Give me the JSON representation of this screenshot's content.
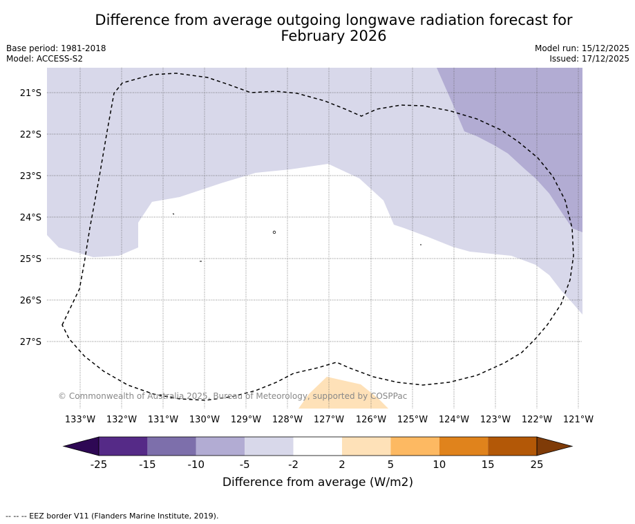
{
  "title": {
    "line1": "Difference from average outgoing longwave radiation forecast for",
    "line2": "February 2026"
  },
  "meta": {
    "base_period": "Base period: 1981-2018",
    "model": "Model: ACCESS-S2",
    "model_run": "Model run: 15/12/2025",
    "issued": "Issued: 17/12/2025"
  },
  "map": {
    "lat_labels": [
      "21°S",
      "22°S",
      "23°S",
      "24°S",
      "25°S",
      "26°S",
      "27°S"
    ],
    "lon_labels": [
      "133°W",
      "132°W",
      "131°W",
      "130°W",
      "129°W",
      "128°W",
      "127°W",
      "126°W",
      "125°W",
      "124°W",
      "123°W",
      "122°W",
      "121°W"
    ],
    "copyright": "© Commonwealth of Australia 2025, Bureau of Meteorology, supported by COSPPac",
    "regions": [
      {
        "name": "-5 to -2",
        "color": "#d8d8ea"
      },
      {
        "name": "-10 to -5",
        "color": "#b2acd3"
      },
      {
        "name": "2 to 5",
        "color": "#fee1b8"
      }
    ]
  },
  "colorbar": {
    "label": "Difference from average (W/m2)",
    "ticks": [
      "-25",
      "-15",
      "-10",
      "-5",
      "-2",
      "2",
      "5",
      "10",
      "15",
      "25"
    ],
    "colors": [
      "#2e0854",
      "#552a87",
      "#7d6fab",
      "#b2acd3",
      "#d8d8ea",
      "#ffffff",
      "#fee1b8",
      "#fdb962",
      "#e0831c",
      "#b35807",
      "#7f3b08"
    ]
  },
  "footer": "--  --  -- EEZ border V11 (Flanders Marine Institute, 2019)."
}
